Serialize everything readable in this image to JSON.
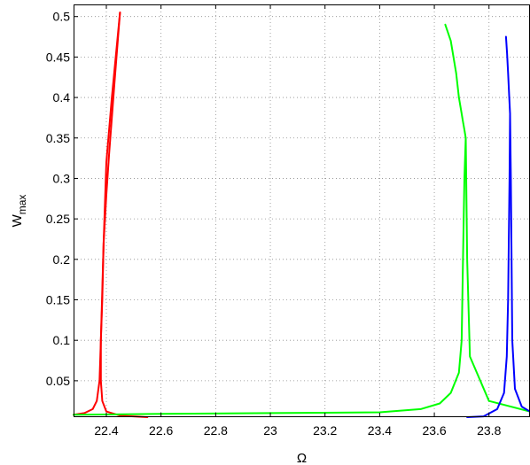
{
  "chart_data": {
    "type": "line",
    "title": "",
    "xlabel": "Ω",
    "ylabel_main": "W",
    "ylabel_sub": "max",
    "xlim": [
      22.28,
      23.95
    ],
    "ylim": [
      0.005,
      0.515
    ],
    "grid": true,
    "legend": "none",
    "x_ticks": [
      22.4,
      22.6,
      22.8,
      23.0,
      23.2,
      23.4,
      23.6,
      23.8
    ],
    "x_tick_labels": [
      "22.4",
      "22.6",
      "22.8",
      "23",
      "23.2",
      "23.4",
      "23.6",
      "23.8"
    ],
    "y_ticks": [
      0.05,
      0.1,
      0.15,
      0.2,
      0.25,
      0.3,
      0.35,
      0.4,
      0.45,
      0.5
    ],
    "y_tick_labels": [
      "0.05",
      "0.1",
      "0.15",
      "0.2",
      "0.25",
      "0.3",
      "0.35",
      "0.4",
      "0.45",
      "0.5"
    ],
    "series": [
      {
        "color": "#ff0000",
        "branches": [
          {
            "x": [
              22.28,
              22.32,
              22.35,
              22.365,
              22.375,
              22.38,
              22.39,
              22.4,
              22.42,
              22.45
            ],
            "y": [
              0.008,
              0.01,
              0.015,
              0.025,
              0.05,
              0.1,
              0.22,
              0.32,
              0.4,
              0.505
            ]
          },
          {
            "x": [
              22.45,
              22.43,
              22.41,
              22.4,
              22.39,
              22.385,
              22.38,
              22.38,
              22.385,
              22.4,
              22.45,
              22.55
            ],
            "y": [
              0.505,
              0.42,
              0.33,
              0.28,
              0.22,
              0.15,
              0.1,
              0.05,
              0.025,
              0.012,
              0.007,
              0.005
            ]
          }
        ]
      },
      {
        "color": "#00ff00",
        "branches": [
          {
            "x": [
              22.28,
              22.6,
              23.0,
              23.4,
              23.55,
              23.62,
              23.66,
              23.69,
              23.7,
              23.705,
              23.71,
              23.715,
              23.72,
              23.73,
              23.8,
              23.95
            ],
            "y": [
              0.008,
              0.009,
              0.01,
              0.011,
              0.015,
              0.022,
              0.035,
              0.06,
              0.1,
              0.2,
              0.3,
              0.35,
              0.2,
              0.08,
              0.025,
              0.012
            ]
          },
          {
            "x": [
              23.64,
              23.66,
              23.68,
              23.69,
              23.7,
              23.705,
              23.71,
              23.715
            ],
            "y": [
              0.49,
              0.47,
              0.43,
              0.4,
              0.38,
              0.37,
              0.36,
              0.35
            ]
          }
        ]
      },
      {
        "color": "#0000ff",
        "branches": [
          {
            "x": [
              23.72,
              23.78,
              23.83,
              23.855,
              23.865,
              23.87,
              23.875,
              23.877
            ],
            "y": [
              0.005,
              0.006,
              0.015,
              0.035,
              0.08,
              0.15,
              0.3,
              0.38
            ]
          },
          {
            "x": [
              23.862,
              23.866,
              23.87,
              23.874,
              23.877,
              23.88,
              23.885,
              23.895,
              23.92,
              23.95
            ],
            "y": [
              0.475,
              0.455,
              0.43,
              0.4,
              0.38,
              0.3,
              0.1,
              0.04,
              0.018,
              0.012
            ]
          }
        ]
      }
    ]
  }
}
